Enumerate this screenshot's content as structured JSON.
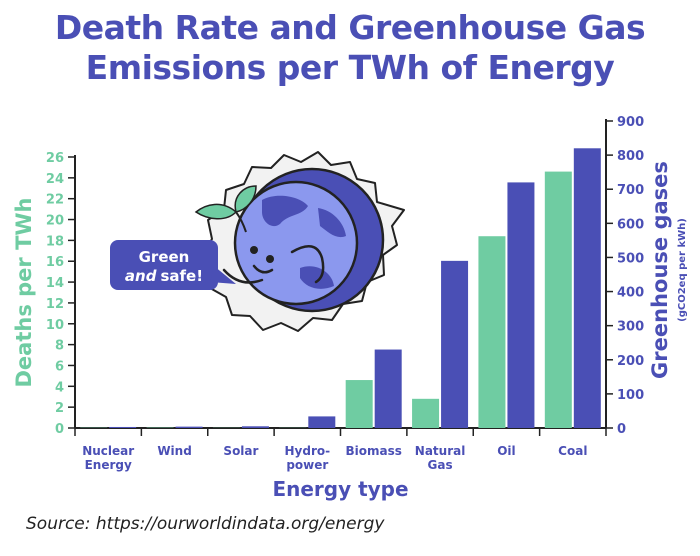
{
  "title_line1": "Death Rate and Greenhouse Gas",
  "title_line2": "Emissions per TWh of Energy",
  "source": "Source: https://ourworldindata.org/energy",
  "bubble": {
    "line1": "Green",
    "line2_italic": "and",
    "line2_rest": "safe!"
  },
  "colors": {
    "deaths": "#6fcca2",
    "ghg": "#4a4fb5",
    "title": "#4a4fb5"
  },
  "chart_data": {
    "type": "bar",
    "title": "Death Rate and Greenhouse Gas Emissions per TWh of Energy",
    "xlabel": "Energy type",
    "ylabel_left": "Deaths per TWh",
    "ylabel_right": "Greenhouse gases",
    "ylabel_right_unit": "(gCO2eq per kWh)",
    "categories": [
      [
        "Nuclear",
        "Energy"
      ],
      [
        "Wind"
      ],
      [
        "Solar"
      ],
      [
        "Hydro-",
        "power"
      ],
      [
        "Biomass"
      ],
      [
        "Natural",
        "Gas"
      ],
      [
        "Oil"
      ],
      [
        "Coal"
      ]
    ],
    "ylim_left": [
      0,
      26
    ],
    "yticks_left": [
      0,
      2,
      4,
      6,
      8,
      10,
      12,
      14,
      16,
      18,
      20,
      22,
      24,
      26
    ],
    "ylim_right": [
      0,
      900
    ],
    "yticks_right": [
      0,
      100,
      200,
      300,
      400,
      500,
      600,
      700,
      800,
      900
    ],
    "series": [
      {
        "axis": "left",
        "values": [
          0.03,
          0.04,
          0.02,
          0.02,
          4.6,
          2.8,
          18.4,
          24.6
        ]
      },
      {
        "axis": "right",
        "values": [
          3,
          4,
          5,
          34,
          230,
          490,
          720,
          820
        ]
      }
    ],
    "legend": "none",
    "grid": false
  }
}
